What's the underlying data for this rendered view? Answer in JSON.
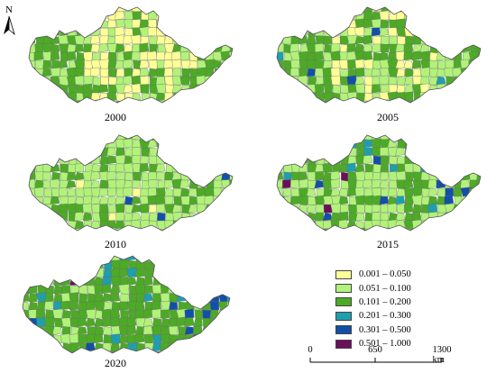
{
  "maps": [
    {
      "year": "2000",
      "mix": {
        "y": 0.35,
        "lg": 0.35,
        "g": 0.29,
        "c": 0.01,
        "b": 0.0,
        "p": 0.0
      }
    },
    {
      "year": "2005",
      "mix": {
        "y": 0.28,
        "lg": 0.38,
        "g": 0.32,
        "c": 0.01,
        "b": 0.01,
        "p": 0.0
      }
    },
    {
      "year": "2010",
      "mix": {
        "y": 0.03,
        "lg": 0.62,
        "g": 0.33,
        "c": 0.01,
        "b": 0.01,
        "p": 0.0
      }
    },
    {
      "year": "2015",
      "mix": {
        "y": 0.0,
        "lg": 0.47,
        "g": 0.45,
        "c": 0.05,
        "b": 0.02,
        "p": 0.01
      }
    },
    {
      "year": "2020",
      "mix": {
        "y": 0.0,
        "lg": 0.22,
        "g": 0.62,
        "c": 0.11,
        "b": 0.04,
        "p": 0.01
      }
    }
  ],
  "legend": [
    {
      "label": "0.001 – 0.050",
      "color": "#ffff99"
    },
    {
      "label": "0.051 – 0.100",
      "color": "#b2f27a"
    },
    {
      "label": "0.101 – 0.200",
      "color": "#4daa26"
    },
    {
      "label": "0.201 – 0.300",
      "color": "#1f9eae"
    },
    {
      "label": "0.301 – 0.500",
      "color": "#1250a8"
    },
    {
      "label": "0.501 – 1.000",
      "color": "#6b0f5a"
    }
  ],
  "north_label": "N",
  "scale_bar": {
    "ticks": [
      "0",
      "650",
      "1300 km"
    ]
  },
  "colors": {
    "y": "#ffff99",
    "lg": "#b2f27a",
    "g": "#4daa26",
    "c": "#1f9eae",
    "b": "#1250a8",
    "p": "#6b0f5a"
  }
}
